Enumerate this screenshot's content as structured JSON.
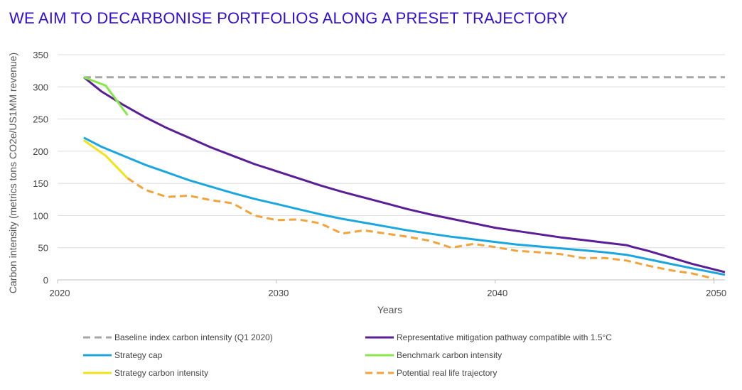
{
  "title": "WE AIM TO DECARBONISE PORTFOLIOS ALONG A PRESET TRAJECTORY",
  "chart_data": {
    "type": "line",
    "xlabel": "Years",
    "ylabel": "Carbon intensity (metrics tons CO2e/US1MM revenue)",
    "xlim": [
      2020,
      2050.5
    ],
    "ylim": [
      0,
      350
    ],
    "xticks": [
      2020,
      2030,
      2040,
      2050
    ],
    "yticks": [
      0,
      50,
      100,
      150,
      200,
      250,
      300,
      350
    ],
    "grid": "horizontal",
    "legend_position": "bottom",
    "series": [
      {
        "key": "baseline",
        "name": "Baseline index carbon intensity (Q1 2020)",
        "color": "#a6a6a6",
        "dash": true,
        "x": [
          2021.2,
          2050.5
        ],
        "y": [
          315,
          315
        ]
      },
      {
        "key": "mitigation",
        "name": "Representative mitigation pathway compatible with 1.5°C",
        "color": "#5a1e96",
        "dash": false,
        "x": [
          2021.2,
          2022,
          2023,
          2024,
          2025,
          2026,
          2027,
          2028,
          2029,
          2030,
          2031,
          2032,
          2033,
          2034,
          2035,
          2036,
          2037,
          2038,
          2039,
          2040,
          2041,
          2042,
          2043,
          2044,
          2045,
          2046,
          2046.3,
          2047,
          2048,
          2049,
          2050.5
        ],
        "y": [
          315,
          293,
          272,
          253,
          236,
          221,
          206,
          193,
          180,
          169,
          158,
          147,
          137,
          128,
          119,
          110,
          102,
          95,
          88,
          81,
          76,
          71,
          66,
          62,
          58,
          54,
          51,
          45,
          35,
          25,
          12
        ]
      },
      {
        "key": "strategy_cap",
        "name": "Strategy cap",
        "color": "#1aa7df",
        "dash": false,
        "x": [
          2021.2,
          2022,
          2023,
          2024,
          2025,
          2026,
          2027,
          2028,
          2029,
          2030,
          2031,
          2032,
          2033,
          2034,
          2035,
          2036,
          2037,
          2038,
          2039,
          2040,
          2041,
          2042,
          2043,
          2044,
          2045,
          2046,
          2046.3,
          2047,
          2048,
          2049,
          2050.5
        ],
        "y": [
          221,
          207,
          193,
          179,
          167,
          155,
          145,
          135,
          126,
          118,
          110,
          102,
          95,
          89,
          83,
          77,
          72,
          67,
          63,
          59,
          55,
          52,
          49,
          46,
          43,
          39,
          37,
          32,
          25,
          18,
          8
        ]
      },
      {
        "key": "benchmark",
        "name": "Benchmark carbon intensity",
        "color": "#86e64a",
        "dash": false,
        "x": [
          2021.2,
          2022.2,
          2023.2
        ],
        "y": [
          315,
          302,
          256
        ]
      },
      {
        "key": "strategy_ci",
        "name": "Strategy carbon intensity",
        "color": "#f2e21a",
        "dash": false,
        "x": [
          2021.2,
          2022.2,
          2023.2
        ],
        "y": [
          217,
          193,
          158
        ]
      },
      {
        "key": "real_life",
        "name": "Potential real life trajectory",
        "color": "#f3a33c",
        "dash": true,
        "x": [
          2023.2,
          2024,
          2025,
          2026,
          2027,
          2028,
          2029,
          2030,
          2031,
          2032,
          2033,
          2034,
          2035,
          2036,
          2037,
          2038,
          2039,
          2040,
          2041,
          2042,
          2043,
          2044,
          2045,
          2046,
          2047,
          2048,
          2049,
          2050
        ],
        "y": [
          158,
          140,
          129,
          131,
          124,
          119,
          100,
          93,
          94,
          88,
          72,
          77,
          72,
          67,
          61,
          50,
          56,
          51,
          45,
          43,
          40,
          34,
          34,
          30,
          22,
          15,
          10,
          2
        ]
      }
    ],
    "legend_layout": [
      [
        "baseline",
        "mitigation"
      ],
      [
        "strategy_cap",
        "benchmark"
      ],
      [
        "strategy_ci",
        "real_life"
      ]
    ]
  }
}
